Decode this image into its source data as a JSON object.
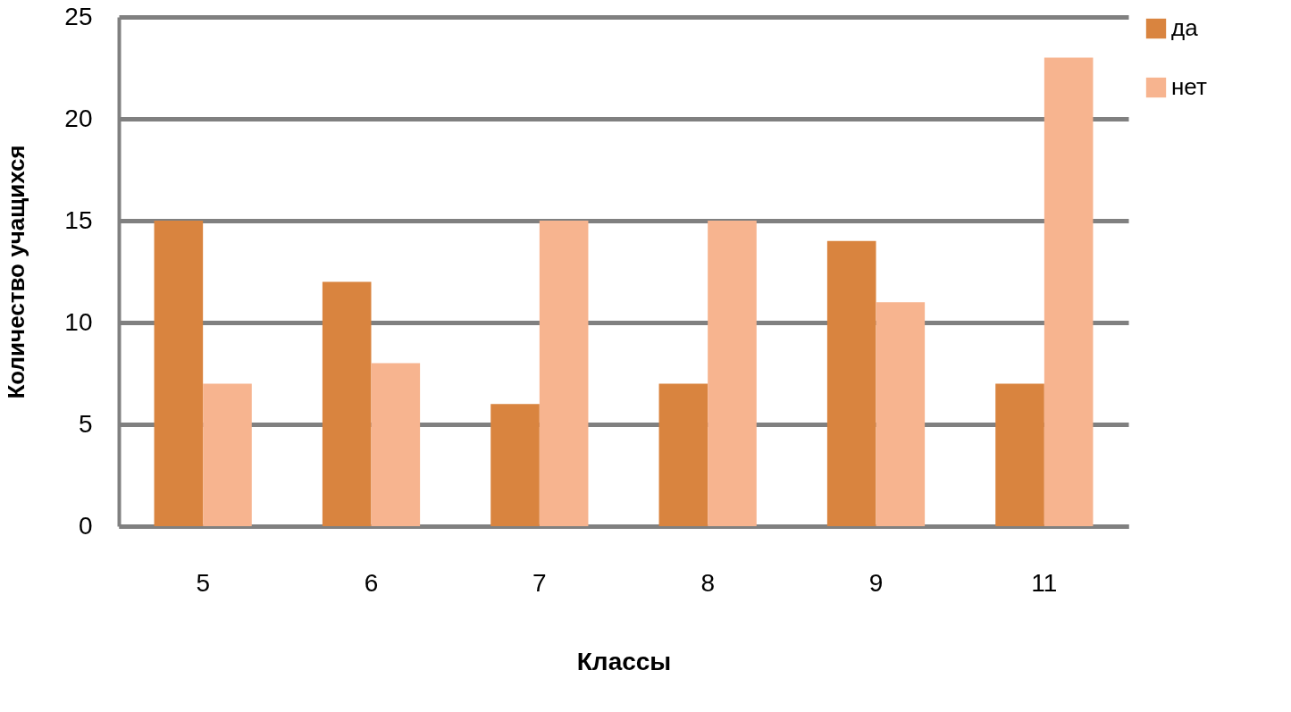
{
  "chart_data": {
    "type": "bar",
    "xlabel": "Классы",
    "ylabel": "Количество учащихся",
    "categories": [
      "5",
      "6",
      "7",
      "8",
      "9",
      "11"
    ],
    "series": [
      {
        "name": "да",
        "color": "#d9843f",
        "values": [
          15,
          12,
          6,
          7,
          14,
          7
        ]
      },
      {
        "name": "нет",
        "color": "#f7b48f",
        "values": [
          7,
          8,
          15,
          15,
          11,
          23
        ]
      }
    ],
    "ylim": [
      0,
      25
    ],
    "yticks": [
      0,
      5,
      10,
      15,
      20,
      25
    ],
    "grid": "y",
    "legend": "right"
  }
}
